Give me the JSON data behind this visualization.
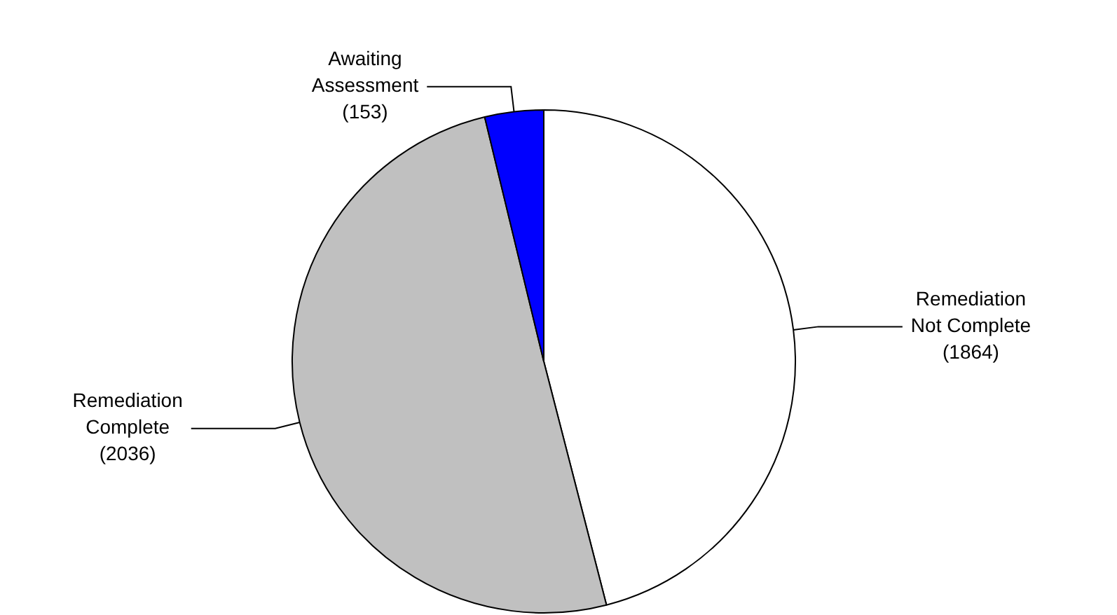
{
  "chart_data": {
    "type": "pie",
    "categories": [
      "Remediation Not Complete",
      "Remediation Complete",
      "Awaiting Assessment"
    ],
    "values": [
      1864,
      2036,
      153
    ],
    "colors": [
      "#ffffff",
      "#c0c0c0",
      "#0000ff"
    ],
    "value_labels": [
      "(1864)",
      "(2036)",
      "(153)"
    ],
    "legend": false
  }
}
